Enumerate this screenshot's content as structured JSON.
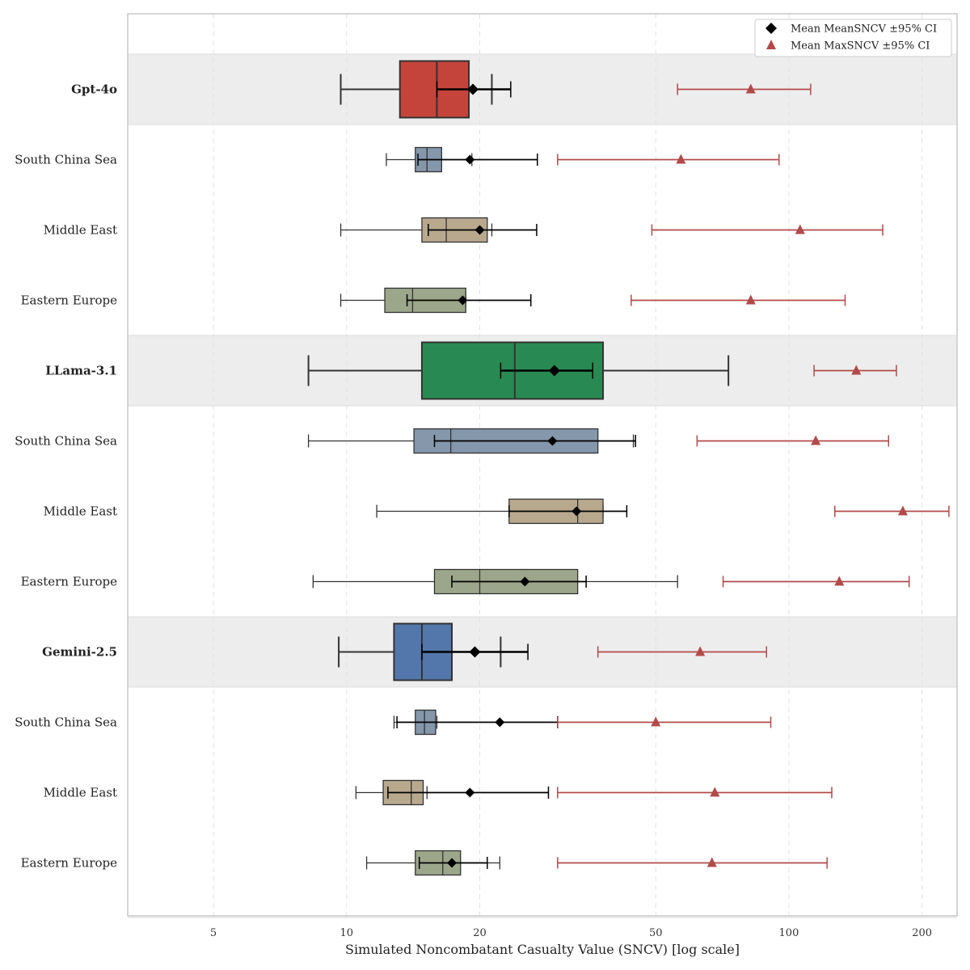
{
  "chart_data": {
    "type": "box",
    "title": "",
    "xlabel": "Simulated Noncombatant Casualty Value (SNCV) [log scale]",
    "ylabel": "",
    "xscale": "log",
    "xlim": [
      3.2,
      240
    ],
    "xticks": [
      5,
      10,
      20,
      50,
      100,
      200
    ],
    "grid": "x-dashed",
    "legend": {
      "placement": "top-right",
      "entries": [
        {
          "label": "Mean MeanSNCV ±95% CI",
          "marker": "diamond",
          "color": "#000000"
        },
        {
          "label": "Mean MaxSNCV ±95% CI",
          "marker": "triangle",
          "color": "#b24a4a"
        }
      ]
    },
    "rows": [
      {
        "label": "Gpt-4o",
        "group": true,
        "color": "#c4443b",
        "box": {
          "whislo": 9.7,
          "q1": 13.2,
          "med": 16.0,
          "q3": 18.9,
          "whishi": 21.3
        },
        "mean": {
          "value": 19.3,
          "lo": 16.0,
          "hi": 23.5
        },
        "max": {
          "value": 82,
          "lo": 56,
          "hi": 112
        }
      },
      {
        "label": "South China Sea",
        "group": false,
        "color": "#8497ab",
        "box": {
          "whislo": 12.3,
          "q1": 14.3,
          "med": 15.2,
          "q3": 16.4,
          "whishi": 19.2
        },
        "mean": {
          "value": 19.0,
          "lo": 14.5,
          "hi": 27.0
        },
        "max": {
          "value": 57,
          "lo": 30,
          "hi": 95
        }
      },
      {
        "label": "Middle East",
        "group": false,
        "color": "#b8a88e",
        "box": {
          "whislo": 9.7,
          "q1": 14.8,
          "med": 16.8,
          "q3": 20.8,
          "whishi": 21.3
        },
        "mean": {
          "value": 20.0,
          "lo": 15.3,
          "hi": 26.9
        },
        "max": {
          "value": 106,
          "lo": 49,
          "hi": 163
        }
      },
      {
        "label": "Eastern Europe",
        "group": false,
        "color": "#9ca68a",
        "box": {
          "whislo": 9.7,
          "q1": 12.2,
          "med": 14.1,
          "q3": 18.6,
          "whishi": 18.6
        },
        "mean": {
          "value": 18.3,
          "lo": 13.7,
          "hi": 26.1
        },
        "max": {
          "value": 82,
          "lo": 44,
          "hi": 134
        }
      },
      {
        "label": "LLama-3.1",
        "group": true,
        "color": "#288a52",
        "box": {
          "whislo": 8.2,
          "q1": 14.8,
          "med": 24.0,
          "q3": 38.0,
          "whishi": 73.0
        },
        "mean": {
          "value": 29.5,
          "lo": 22.3,
          "hi": 36.0
        },
        "max": {
          "value": 142,
          "lo": 114,
          "hi": 175
        }
      },
      {
        "label": "South China Sea",
        "group": false,
        "color": "#8497ab",
        "box": {
          "whislo": 8.2,
          "q1": 14.2,
          "med": 17.2,
          "q3": 37.0,
          "whishi": 44.5
        },
        "mean": {
          "value": 29.2,
          "lo": 15.8,
          "hi": 45.0
        },
        "max": {
          "value": 115,
          "lo": 62,
          "hi": 168
        }
      },
      {
        "label": "Middle East",
        "group": false,
        "color": "#b8a88e",
        "box": {
          "whislo": 11.7,
          "q1": 23.3,
          "med": 33.3,
          "q3": 38.0,
          "whishi": 38.0
        },
        "mean": {
          "value": 33.1,
          "lo": 23.3,
          "hi": 43.0
        },
        "max": {
          "value": 181,
          "lo": 127,
          "hi": 230
        }
      },
      {
        "label": "Eastern Europe",
        "group": false,
        "color": "#9ca68a",
        "box": {
          "whislo": 8.4,
          "q1": 15.8,
          "med": 20.0,
          "q3": 33.3,
          "whishi": 56.0
        },
        "mean": {
          "value": 25.3,
          "lo": 17.3,
          "hi": 34.8
        },
        "max": {
          "value": 130,
          "lo": 71,
          "hi": 187
        }
      },
      {
        "label": "Gemini-2.5",
        "group": true,
        "color": "#5377ab",
        "box": {
          "whislo": 9.6,
          "q1": 12.8,
          "med": 14.8,
          "q3": 17.3,
          "whishi": 22.3
        },
        "mean": {
          "value": 19.5,
          "lo": 14.8,
          "hi": 25.7
        },
        "max": {
          "value": 63,
          "lo": 37,
          "hi": 89
        }
      },
      {
        "label": "South China Sea",
        "group": false,
        "color": "#8497ab",
        "box": {
          "whislo": 12.8,
          "q1": 14.3,
          "med": 15.0,
          "q3": 15.9,
          "whishi": 16.0
        },
        "mean": {
          "value": 22.2,
          "lo": 13.0,
          "hi": 30.0
        },
        "max": {
          "value": 50,
          "lo": 30,
          "hi": 91
        }
      },
      {
        "label": "Middle East",
        "group": false,
        "color": "#b8a88e",
        "box": {
          "whislo": 10.5,
          "q1": 12.1,
          "med": 14.0,
          "q3": 14.9,
          "whishi": 15.2
        },
        "mean": {
          "value": 19.0,
          "lo": 12.4,
          "hi": 28.6
        },
        "max": {
          "value": 68,
          "lo": 30,
          "hi": 125
        }
      },
      {
        "label": "Eastern Europe",
        "group": false,
        "color": "#9ca68a",
        "box": {
          "whislo": 11.1,
          "q1": 14.3,
          "med": 16.5,
          "q3": 18.1,
          "whishi": 22.2
        },
        "mean": {
          "value": 17.3,
          "lo": 14.6,
          "hi": 20.8
        },
        "max": {
          "value": 67,
          "lo": 30,
          "hi": 122
        }
      }
    ]
  }
}
